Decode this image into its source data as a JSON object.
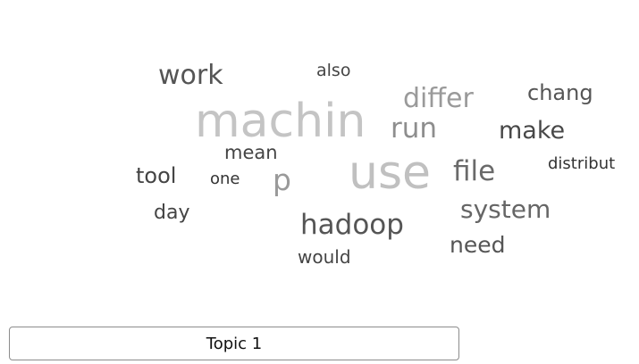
{
  "topic_button": {
    "label": "Topic 1"
  },
  "words": [
    {
      "id": "machin",
      "text": "machin",
      "color": "#c4c4c4"
    },
    {
      "id": "use",
      "text": "use",
      "color": "#c0c0c0"
    },
    {
      "id": "work",
      "text": "work",
      "color": "#555555"
    },
    {
      "id": "also",
      "text": "also",
      "color": "#444444"
    },
    {
      "id": "differ",
      "text": "differ",
      "color": "#9a9a9a"
    },
    {
      "id": "chang",
      "text": "chang",
      "color": "#555555"
    },
    {
      "id": "run",
      "text": "run",
      "color": "#8e8e8e"
    },
    {
      "id": "make",
      "text": "make",
      "color": "#484848"
    },
    {
      "id": "mean",
      "text": "mean",
      "color": "#444444"
    },
    {
      "id": "distribut",
      "text": "distribut",
      "color": "#333333"
    },
    {
      "id": "tool",
      "text": "tool",
      "color": "#444444"
    },
    {
      "id": "one",
      "text": "one",
      "color": "#333333"
    },
    {
      "id": "p",
      "text": "p",
      "color": "#9a9a9a"
    },
    {
      "id": "file",
      "text": "file",
      "color": "#6a6a6a"
    },
    {
      "id": "day",
      "text": "day",
      "color": "#444444"
    },
    {
      "id": "system",
      "text": "system",
      "color": "#666666"
    },
    {
      "id": "hadoop",
      "text": "hadoop",
      "color": "#555555"
    },
    {
      "id": "need",
      "text": "need",
      "color": "#555555"
    },
    {
      "id": "would",
      "text": "would",
      "color": "#444444"
    }
  ]
}
